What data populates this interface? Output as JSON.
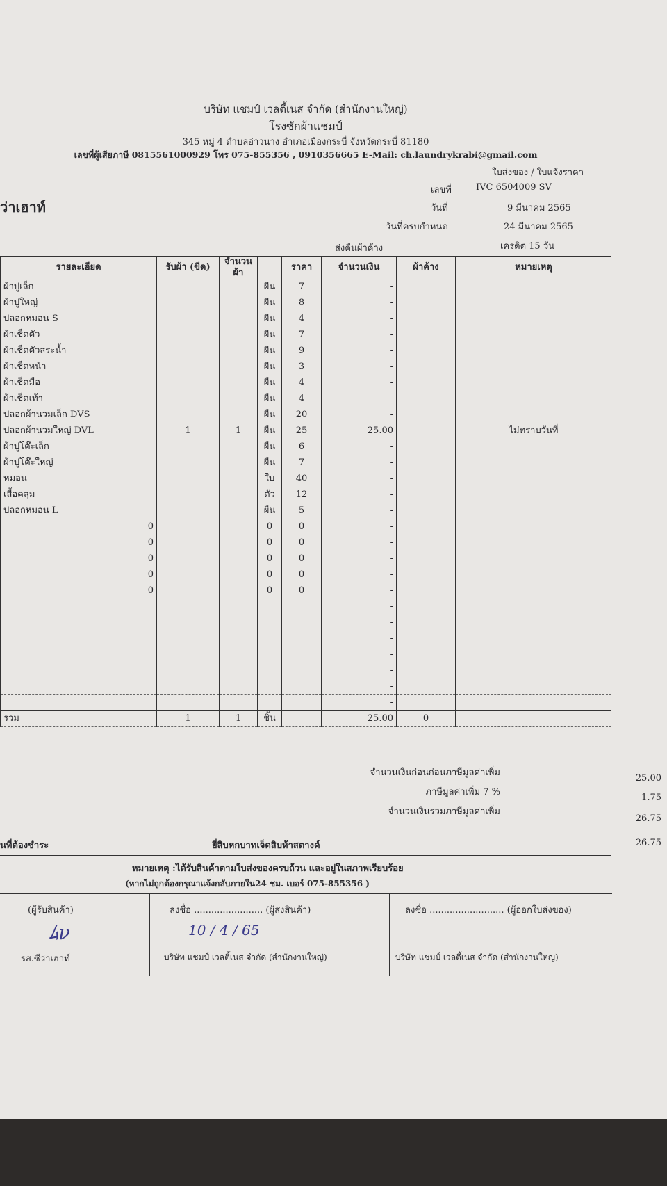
{
  "header": {
    "company": "บริษัท แชมป์ เวลตี้เนส จำกัด (สำนักงานใหญ่)",
    "factory": "โรงซักผ้าแชมป์",
    "address": "345 หมู่ 4 ตำบลอ่าวนาง อำเภอเมืองกระบี่ จังหวัดกระบี่ 81180",
    "contact": "เลขที่ผู้เสียภาษี 0815561000929 โทร 075-855356 , 0910356665 E-Mail: ch.laundrykrabi@gmail.com",
    "doc_type": "ใบส่งของ / ใบแจ้งราคา",
    "customer": "ว่าเฮาท์"
  },
  "meta": {
    "no_label": "เลขที่",
    "no": "IVC 6504009 SV",
    "date_label": "วันที่",
    "date": "9 มีนาคม 2565",
    "due_label": "วันที่ครบกำหนด",
    "due": "24 มีนาคม 2565",
    "credit": "เครดิต 15 วัน",
    "return_label": "ส่งคืนผ้าค้าง"
  },
  "columns": [
    "รายละเอียด",
    "รับผ้า (ขีด)",
    "จำนวนผ้า",
    "",
    "ราคา",
    "จำนวนเงิน",
    "ผ้าค้าง",
    "หมายเหตุ"
  ],
  "rows": [
    [
      "ผ้าปูเล็ก",
      "",
      "",
      "ผืน",
      "7",
      "-",
      "",
      ""
    ],
    [
      "ผ้าปูใหญ่",
      "",
      "",
      "ผืน",
      "8",
      "-",
      "",
      ""
    ],
    [
      "ปลอกหมอน S",
      "",
      "",
      "ผืน",
      "4",
      "-",
      "",
      ""
    ],
    [
      "ผ้าเช็ดตัว",
      "",
      "",
      "ผืน",
      "7",
      "-",
      "",
      ""
    ],
    [
      "ผ้าเช็ดตัวสระน้ำ",
      "",
      "",
      "ผืน",
      "9",
      "-",
      "",
      ""
    ],
    [
      "ผ้าเช็ดหน้า",
      "",
      "",
      "ผืน",
      "3",
      "-",
      "",
      ""
    ],
    [
      "ผ้าเช็ดมือ",
      "",
      "",
      "ผืน",
      "4",
      "-",
      "",
      ""
    ],
    [
      "ผ้าเช็ดเท้า",
      "",
      "",
      "ผืน",
      "4",
      "",
      "",
      ""
    ],
    [
      "ปลอกผ้านวมเล็ก DVS",
      "",
      "",
      "ผืน",
      "20",
      "-",
      "",
      ""
    ],
    [
      "ปลอกผ้านวมใหญ่ DVL",
      "1",
      "1",
      "ผืน",
      "25",
      "25.00",
      "",
      "ไม่ทราบวันที่"
    ],
    [
      "ผ้าปูโต๊ะเล็ก",
      "",
      "",
      "ผืน",
      "6",
      "-",
      "",
      ""
    ],
    [
      "ผ้าปูโต๊ะใหญ่",
      "",
      "",
      "ผืน",
      "7",
      "-",
      "",
      ""
    ],
    [
      "หมอน",
      "",
      "",
      "ใบ",
      "40",
      "-",
      "",
      ""
    ],
    [
      "เสื้อคลุม",
      "",
      "",
      "ตัว",
      "12",
      "-",
      "",
      ""
    ],
    [
      "ปลอกหมอน L",
      "",
      "",
      "ผืน",
      "5",
      "-",
      "",
      ""
    ],
    [
      "0",
      "",
      "",
      "0",
      "0",
      "-",
      "",
      ""
    ],
    [
      "0",
      "",
      "",
      "0",
      "0",
      "-",
      "",
      ""
    ],
    [
      "0",
      "",
      "",
      "0",
      "0",
      "-",
      "",
      ""
    ],
    [
      "0",
      "",
      "",
      "0",
      "0",
      "-",
      "",
      ""
    ],
    [
      "0",
      "",
      "",
      "0",
      "0",
      "-",
      "",
      ""
    ],
    [
      "",
      "",
      "",
      "",
      "",
      "-",
      "",
      ""
    ],
    [
      "",
      "",
      "",
      "",
      "",
      "-",
      "",
      ""
    ],
    [
      "",
      "",
      "",
      "",
      "",
      "-",
      "",
      ""
    ],
    [
      "",
      "",
      "",
      "",
      "",
      "-",
      "",
      ""
    ],
    [
      "",
      "",
      "",
      "",
      "",
      "-",
      "",
      ""
    ],
    [
      "",
      "",
      "",
      "",
      "",
      "-",
      "",
      ""
    ],
    [
      "",
      "",
      "",
      "",
      "",
      "-",
      "",
      ""
    ]
  ],
  "total": [
    "รวม",
    "1",
    "1",
    "ชิ้น",
    "",
    "25.00",
    "0",
    ""
  ],
  "summary": {
    "subtotal_label": "จำนวนเงินก่อนก่อนภาษีมูลค่าเพิ่ม",
    "subtotal": "25.00",
    "vat_label": "ภาษีมูลค่าเพิ่ม 7 %",
    "vat": "1.75",
    "grand_label": "จำนวนเงินรวมภาษีมูลค่าเพิ่ม",
    "grand": "26.75",
    "payable_label": "นที่ต้องชำระ",
    "payable_words": "ยี่สิบหกบาทเจ็ดสิบห้าสตางค์",
    "payable": "26.75"
  },
  "note": {
    "line1": "หมายเหตุ :ได้รับสินค้าตามใบส่งของครบถ้วน และอยู่ในสภาพเรียบร้อย",
    "line2": "(หากไม่ถูกต้องกรุณาแจ้งกลับภายใน24 ชม. เบอร์ 075-855356 )"
  },
  "signatures": [
    {
      "label": "(ผู้รับสินค้า)",
      "company": "รส.ซีว่าเฮาท์"
    },
    {
      "prefix": "ลงชื่อ",
      "label": "(ผู้ส่งสินค้า)",
      "handwritten": "10 / 4 / 65",
      "company": "บริษัท แชมป์ เวลตี้เนส จำกัด (สำนักงานใหญ่)"
    },
    {
      "prefix": "ลงชื่อ",
      "label": "(ผู้ออกใบส่งของ)",
      "company": "บริษัท แชมป์ เวลตี้เนส จำกัด (สำนักงานใหญ่)"
    }
  ]
}
